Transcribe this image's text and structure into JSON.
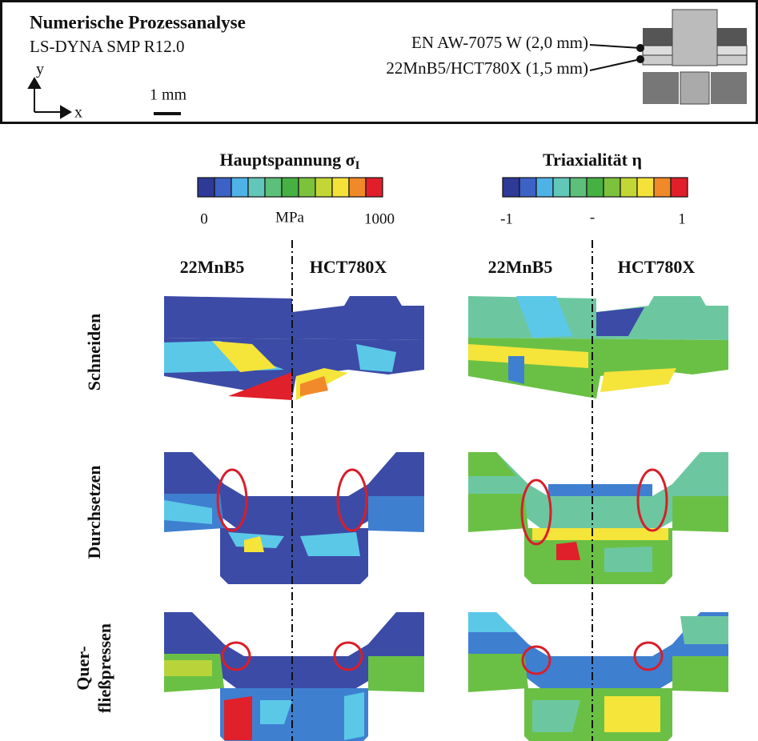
{
  "header": {
    "title": "Numerische Prozessanalyse",
    "software": "LS-DYNA SMP R12.0",
    "axis_y": "y",
    "axis_x": "x",
    "scale": "1 mm",
    "materials": [
      "EN AW-7075 W (2,0 mm)",
      "22MnB5/HCT780X (1,5 mm)"
    ]
  },
  "legends": [
    {
      "title": "Hauptspannung σ",
      "subscript": "I",
      "min": "0",
      "unit": "MPa",
      "max": "1000"
    },
    {
      "title": "Triaxialität η",
      "min": "-1",
      "unit": "-",
      "max": "1"
    }
  ],
  "columns": [
    "22MnB5",
    "HCT780X",
    "22MnB5",
    "HCT780X"
  ],
  "rows": [
    [
      "Schneiden"
    ],
    [
      "Durchsetzen"
    ],
    [
      "Quer-",
      "fließpressen"
    ]
  ]
}
